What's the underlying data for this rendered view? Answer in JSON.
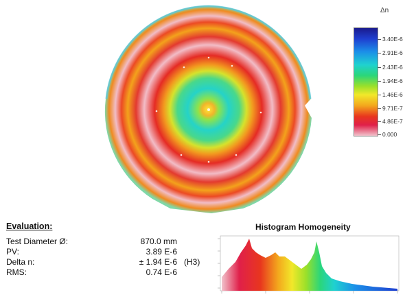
{
  "legend": {
    "title": "Δn",
    "ticks": [
      "3.40E-6",
      "2.91E-6",
      "2.43E-6",
      "1.94E-6",
      "1.46E-6",
      "9.71E-7",
      "4.86E-7",
      "0.000"
    ]
  },
  "evaluation": {
    "title": "Evaluation:",
    "rows": [
      {
        "label": "Test Diameter Ø:",
        "value": "870.0 mm"
      },
      {
        "label": "PV:",
        "value": "3.89 E-6"
      },
      {
        "label": "Delta n:",
        "value": "± 1.94 E-6",
        "suffix": "(H3)"
      },
      {
        "label": "RMS:",
        "value": "0.74 E-6"
      }
    ]
  },
  "histogram": {
    "title": "Histogram Homogeneity"
  },
  "colors": {
    "accent_red": "#e8361e",
    "accent_green": "#2bd67a",
    "accent_blue": "#1f3fd0"
  }
}
